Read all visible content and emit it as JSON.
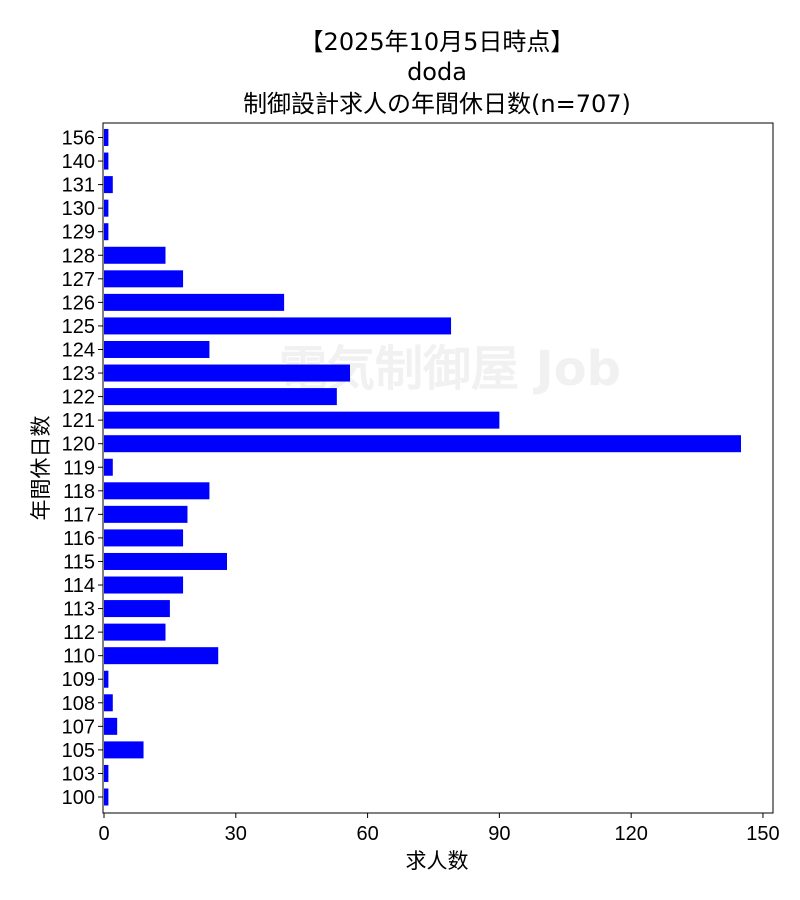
{
  "chart_data": {
    "type": "bar",
    "orientation": "horizontal",
    "title_lines": [
      "【2025年10月5日時点】",
      "doda",
      "制御設計求人の年間休日数(n=707)"
    ],
    "xlabel": "求人数",
    "ylabel": "年間休日数",
    "xlim": [
      0,
      152
    ],
    "xticks": [
      0,
      30,
      60,
      90,
      120,
      150
    ],
    "bar_color": "#0000ff",
    "grid": false,
    "watermark": "電気制御屋 Job",
    "categories": [
      "100",
      "103",
      "105",
      "107",
      "108",
      "109",
      "110",
      "112",
      "113",
      "114",
      "115",
      "116",
      "117",
      "118",
      "119",
      "120",
      "121",
      "122",
      "123",
      "124",
      "125",
      "126",
      "127",
      "128",
      "129",
      "130",
      "131",
      "140",
      "156"
    ],
    "values": [
      1,
      1,
      9,
      3,
      2,
      1,
      26,
      14,
      15,
      18,
      28,
      18,
      19,
      24,
      2,
      145,
      90,
      53,
      56,
      24,
      79,
      41,
      18,
      14,
      1,
      1,
      2,
      1,
      1
    ]
  }
}
